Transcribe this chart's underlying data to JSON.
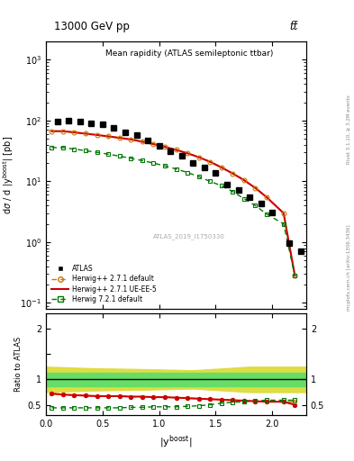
{
  "title_left": "13000 GeV pp",
  "title_right": "tt̅",
  "main_title": "Mean rapidity (ATLAS semileptonic ttbar)",
  "watermark": "ATLAS_2019_I1750330",
  "right_label": "mcplots.cern.ch [arXiv:1306.3436]",
  "rivet_label": "Rivet 3.1.10, ≥ 3.2M events",
  "ylabel_main": "dσ / d |y$^{boost}$| [pb]",
  "ylabel_ratio": "Ratio to ATLAS",
  "xlabel": "|y$^{boost}$|",
  "xlim": [
    0,
    2.3
  ],
  "ylim_main": [
    0.08,
    2000
  ],
  "ylim_ratio": [
    0.3,
    2.3
  ],
  "x_atlas": [
    0.1,
    0.2,
    0.3,
    0.4,
    0.5,
    0.6,
    0.7,
    0.8,
    0.9,
    1.0,
    1.1,
    1.2,
    1.3,
    1.4,
    1.5,
    1.6,
    1.7,
    1.8,
    1.9,
    2.0,
    2.15,
    2.25
  ],
  "y_atlas": [
    97,
    100,
    96,
    90,
    86,
    76,
    65,
    57,
    47,
    39,
    31,
    26,
    20,
    17,
    14,
    9.0,
    7.2,
    5.5,
    4.3,
    3.1,
    0.95,
    0.72
  ],
  "x_mc": [
    0.05,
    0.15,
    0.25,
    0.35,
    0.45,
    0.55,
    0.65,
    0.75,
    0.85,
    0.95,
    1.05,
    1.15,
    1.25,
    1.35,
    1.45,
    1.55,
    1.65,
    1.75,
    1.85,
    1.95,
    2.1,
    2.2
  ],
  "y_hwpp271_def": [
    67,
    67,
    64,
    61,
    58,
    55,
    52,
    49,
    45,
    41,
    37,
    33,
    29,
    25,
    21,
    17,
    13.5,
    10.5,
    7.8,
    5.5,
    3.0,
    0.28
  ],
  "y_hwpp271_ue": [
    67,
    67,
    64,
    61,
    58,
    55,
    52,
    49,
    45,
    41,
    37,
    33,
    29,
    25,
    21,
    17,
    13.5,
    10.5,
    7.8,
    5.5,
    3.0,
    0.28
  ],
  "y_hw721_def": [
    36,
    36,
    34,
    32,
    30,
    28,
    26,
    24,
    22,
    20,
    18,
    16,
    14,
    12,
    10,
    8.5,
    6.8,
    5.2,
    4.0,
    2.9,
    2.0,
    0.28
  ],
  "ratio_hwpp271_def": [
    0.72,
    0.7,
    0.69,
    0.68,
    0.67,
    0.67,
    0.67,
    0.66,
    0.66,
    0.65,
    0.65,
    0.64,
    0.63,
    0.62,
    0.61,
    0.6,
    0.59,
    0.58,
    0.57,
    0.56,
    0.56,
    0.56
  ],
  "ratio_hwpp271_ue": [
    0.72,
    0.7,
    0.69,
    0.68,
    0.67,
    0.67,
    0.67,
    0.66,
    0.66,
    0.65,
    0.65,
    0.64,
    0.63,
    0.62,
    0.61,
    0.6,
    0.59,
    0.58,
    0.57,
    0.56,
    0.56,
    0.5
  ],
  "ratio_hw721_def": [
    0.44,
    0.44,
    0.44,
    0.44,
    0.44,
    0.44,
    0.44,
    0.45,
    0.45,
    0.46,
    0.46,
    0.46,
    0.47,
    0.48,
    0.5,
    0.53,
    0.55,
    0.56,
    0.58,
    0.59,
    0.59,
    0.59
  ],
  "green_band_x": [
    0.0,
    0.5,
    1.0,
    1.5,
    2.0,
    2.3
  ],
  "green_band_lo": [
    0.87,
    0.87,
    0.87,
    0.87,
    0.87,
    0.87
  ],
  "green_band_hi": [
    1.13,
    1.13,
    1.13,
    1.13,
    1.13,
    1.13
  ],
  "yellow_band_x": [
    0.0,
    0.4,
    0.9,
    1.3,
    1.8,
    2.3
  ],
  "yellow_band_lo": [
    0.75,
    0.78,
    0.8,
    0.82,
    0.75,
    0.75
  ],
  "yellow_band_hi": [
    1.25,
    1.22,
    1.2,
    1.18,
    1.25,
    1.25
  ],
  "color_atlas": "#000000",
  "color_hwpp271_def": "#cc7700",
  "color_hwpp271_ue": "#cc0000",
  "color_hw721_def": "#007700",
  "color_green_band": "#66dd66",
  "color_yellow_band": "#dddd44"
}
